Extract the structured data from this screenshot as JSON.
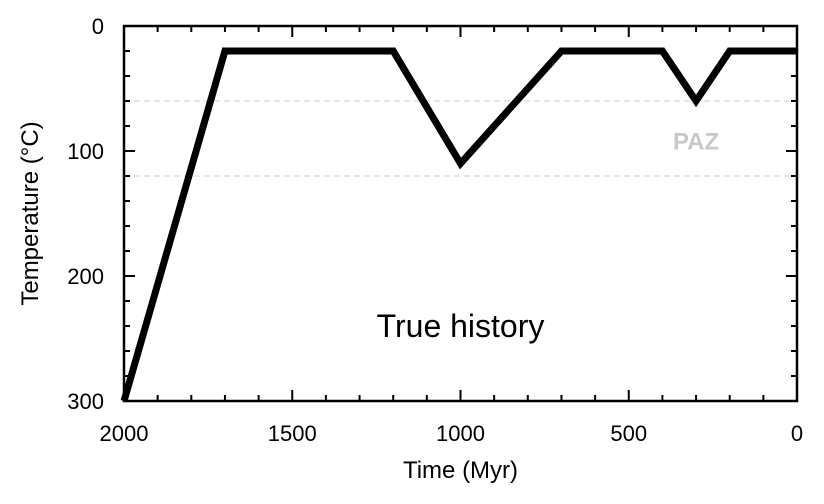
{
  "chart_data": {
    "type": "line",
    "xlabel": "Time (Myr)",
    "ylabel": "Temperature (°C)",
    "xlim": [
      2000,
      0
    ],
    "ylim": [
      0,
      300
    ],
    "x_inverted": true,
    "y_inverted": true,
    "grid": false,
    "x_ticks": [
      "2000",
      "1500",
      "1000",
      "500",
      "0"
    ],
    "y_ticks": [
      "0",
      "100",
      "200",
      "300"
    ],
    "x_tick_values": [
      2000,
      1500,
      1000,
      500,
      0
    ],
    "y_tick_values": [
      0,
      100,
      200,
      300
    ],
    "series": [
      {
        "color": "#000000",
        "x": [
          2000,
          1700,
          1200,
          1000,
          700,
          400,
          300,
          200,
          0
        ],
        "y": [
          300,
          20,
          20,
          110,
          20,
          20,
          60,
          20,
          20
        ]
      }
    ],
    "reference_lines": [
      {
        "y": 60,
        "style": "dashed",
        "color": "#cccccc"
      },
      {
        "y": 120,
        "style": "dashed",
        "color": "#cccccc"
      }
    ],
    "annotations": [
      {
        "id": "history",
        "text": "True history",
        "x": 1000,
        "y": 240,
        "color": "#000000"
      },
      {
        "id": "paz",
        "text": "PAZ",
        "x": 300,
        "y": 90,
        "color": "#c8c8c8"
      }
    ]
  }
}
